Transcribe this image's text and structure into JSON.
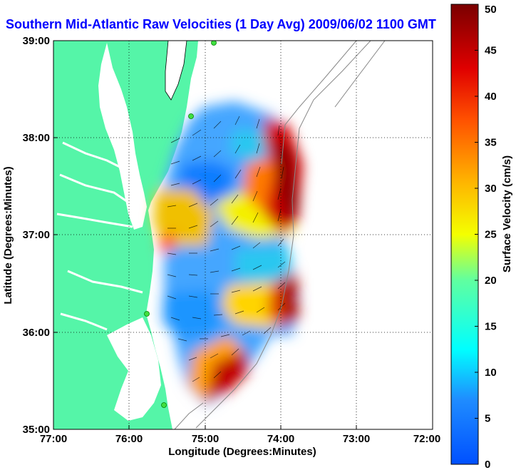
{
  "title": "Southern Mid-Atlantic Raw Velocities (1 Day Avg) 2009/06/02 1100 GMT",
  "map": {
    "x_axis_label": "Longitude (Degrees:Minutes)",
    "y_axis_label": "Latitude (Degrees:Minutes)",
    "x_ticks": [
      "77:00",
      "76:00",
      "75:00",
      "74:00",
      "73:00",
      "72:00"
    ],
    "y_ticks": [
      "39:00",
      "38:00",
      "37:00",
      "36:00",
      "35:00"
    ],
    "land_color": "#55f5a8",
    "water_color": "#ffffff"
  },
  "colorbar": {
    "label": "Surface Velocity (cm/s)",
    "ticks": [
      "0",
      "5",
      "10",
      "15",
      "20",
      "25",
      "30",
      "35",
      "40",
      "45",
      "50"
    ],
    "range": [
      0,
      50
    ],
    "colormap": "jet"
  }
}
